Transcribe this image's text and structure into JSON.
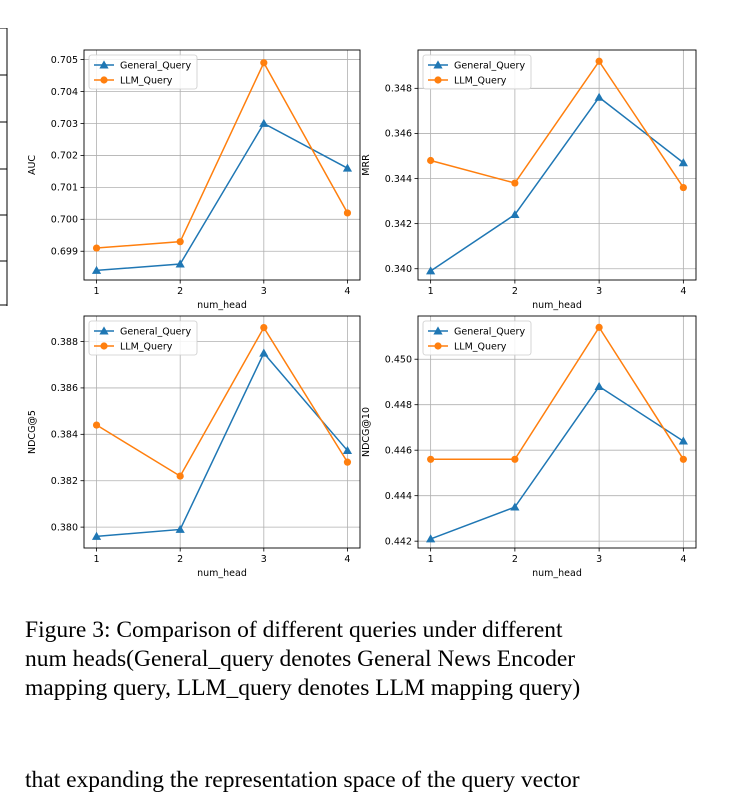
{
  "chart_data": [
    {
      "type": "line",
      "xlabel": "num_head",
      "ylabel": "AUC",
      "x": [
        1,
        2,
        3,
        4
      ],
      "ylim": [
        0.6981,
        0.7053
      ],
      "yticks": [
        "0.699",
        "0.700",
        "0.701",
        "0.702",
        "0.703",
        "0.704",
        "0.705"
      ],
      "legend": "top-left",
      "grid": true,
      "series": [
        {
          "name": "General_Query",
          "values": [
            0.6984,
            0.6986,
            0.703,
            0.7016
          ],
          "color": "#1f77b4",
          "marker": "triangle"
        },
        {
          "name": "LLM_Query",
          "values": [
            0.6991,
            0.6993,
            0.7049,
            0.7002
          ],
          "color": "#ff7f0e",
          "marker": "circle"
        }
      ]
    },
    {
      "type": "line",
      "xlabel": "num_head",
      "ylabel": "MRR",
      "x": [
        1,
        2,
        3,
        4
      ],
      "ylim": [
        0.3395,
        0.3497
      ],
      "yticks": [
        "0.340",
        "0.342",
        "0.344",
        "0.346",
        "0.348"
      ],
      "legend": "top-left",
      "grid": true,
      "series": [
        {
          "name": "General_Query",
          "values": [
            0.3399,
            0.3424,
            0.3476,
            0.3447
          ],
          "color": "#1f77b4",
          "marker": "triangle"
        },
        {
          "name": "LLM_Query",
          "values": [
            0.3448,
            0.3438,
            0.3492,
            0.3436
          ],
          "color": "#ff7f0e",
          "marker": "circle"
        }
      ]
    },
    {
      "type": "line",
      "xlabel": "num_head",
      "ylabel": "NDCG@5",
      "x": [
        1,
        2,
        3,
        4
      ],
      "ylim": [
        0.3791,
        0.3891
      ],
      "yticks": [
        "0.380",
        "0.382",
        "0.384",
        "0.386",
        "0.388"
      ],
      "legend": "top-left",
      "grid": true,
      "series": [
        {
          "name": "General_Query",
          "values": [
            0.3796,
            0.3799,
            0.3875,
            0.3833
          ],
          "color": "#1f77b4",
          "marker": "triangle"
        },
        {
          "name": "LLM_Query",
          "values": [
            0.3844,
            0.3822,
            0.3886,
            0.3828
          ],
          "color": "#ff7f0e",
          "marker": "circle"
        }
      ]
    },
    {
      "type": "line",
      "xlabel": "num_head",
      "ylabel": "NDCG@10",
      "x": [
        1,
        2,
        3,
        4
      ],
      "ylim": [
        0.4417,
        0.4519
      ],
      "yticks": [
        "0.442",
        "0.444",
        "0.446",
        "0.448",
        "0.450"
      ],
      "legend": "top-left",
      "grid": true,
      "series": [
        {
          "name": "General_Query",
          "values": [
            0.4421,
            0.4435,
            0.4488,
            0.4464
          ],
          "color": "#1f77b4",
          "marker": "triangle"
        },
        {
          "name": "LLM_Query",
          "values": [
            0.4456,
            0.4456,
            0.4514,
            0.4456
          ],
          "color": "#ff7f0e",
          "marker": "circle"
        }
      ]
    }
  ],
  "caption": {
    "lines": [
      "Figure 3: Comparison of different queries under different",
      "num heads(General_query denotes General News Encoder",
      "mapping query, LLM_query denotes LLM mapping query)"
    ]
  },
  "body_text": "that expanding the representation space of the query vector"
}
